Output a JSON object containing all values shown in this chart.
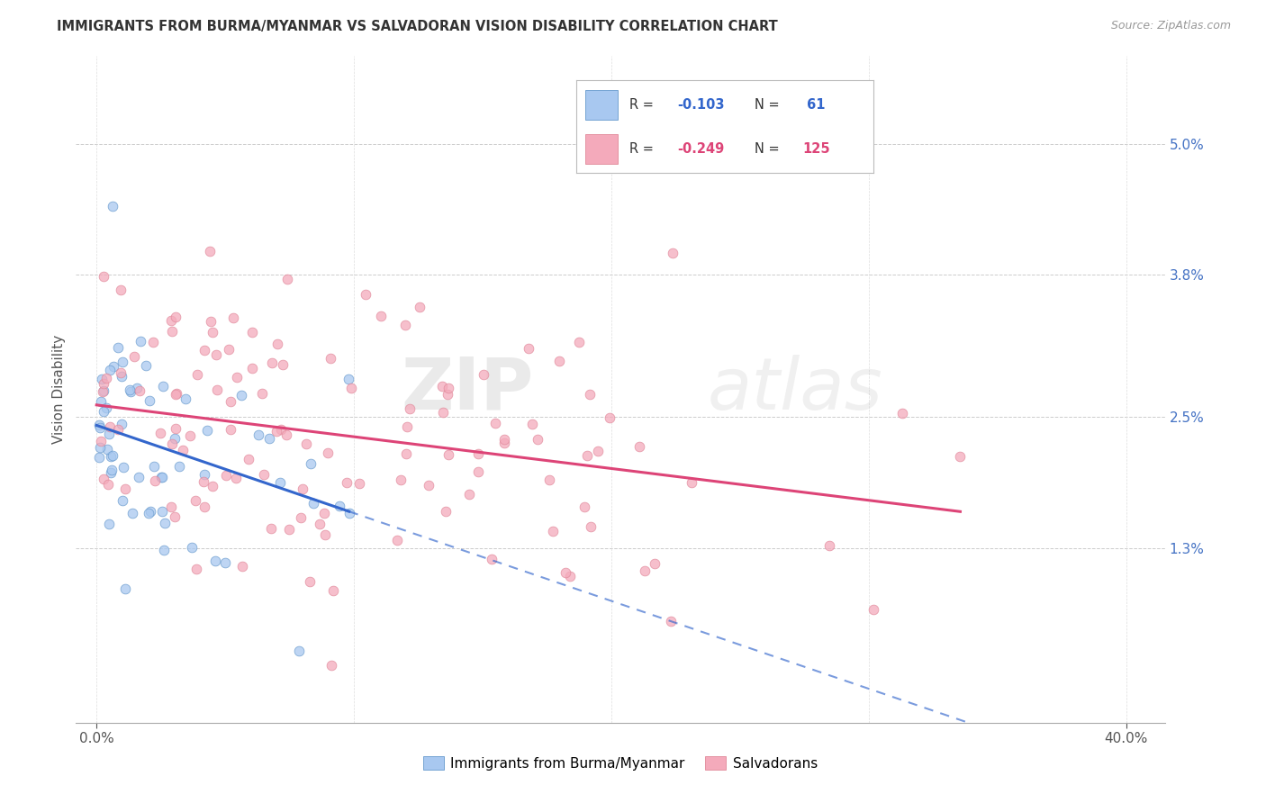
{
  "title": "IMMIGRANTS FROM BURMA/MYANMAR VS SALVADORAN VISION DISABILITY CORRELATION CHART",
  "source": "Source: ZipAtlas.com",
  "ylabel": "Vision Disability",
  "legend_labels": [
    "Immigrants from Burma/Myanmar",
    "Salvadorans"
  ],
  "x_ticks": [
    0.0,
    0.4
  ],
  "x_tick_labels": [
    "0.0%",
    "40.0%"
  ],
  "y_ticks": [
    0.013,
    0.025,
    0.038,
    0.05
  ],
  "y_tick_labels": [
    "1.3%",
    "2.5%",
    "3.8%",
    "5.0%"
  ],
  "color_blue": "#A8C8F0",
  "color_pink": "#F4AABB",
  "color_blue_edge": "#6699CC",
  "color_pink_edge": "#E08899",
  "color_blue_line": "#3366CC",
  "color_pink_line": "#DD4477",
  "watermark_zip": "ZIP",
  "watermark_atlas": "atlas",
  "blue_R": -0.103,
  "pink_R": -0.249,
  "blue_N": 61,
  "pink_N": 125,
  "seed_blue": 42,
  "seed_pink": 7
}
